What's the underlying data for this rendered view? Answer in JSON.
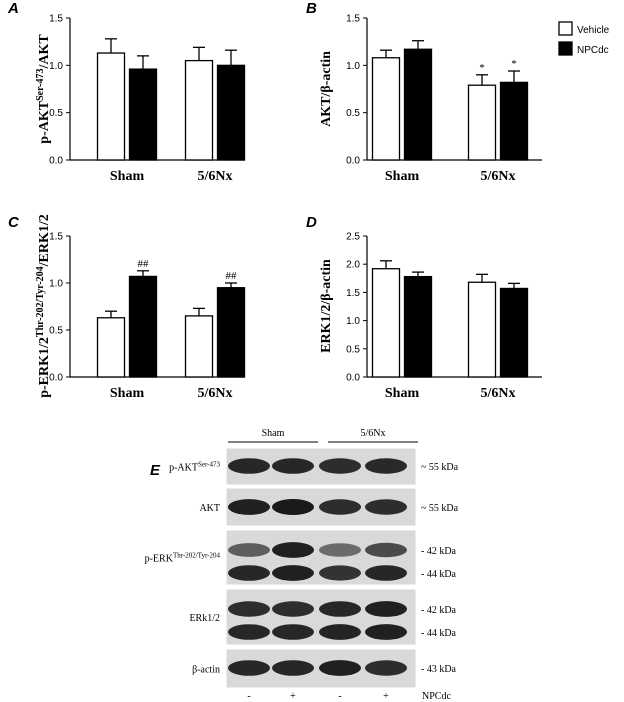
{
  "chart_data": [
    {
      "type": "bar",
      "panel": "A",
      "ylabel": {
        "main": "p-AKT",
        "sup": "Ser-473",
        "tail": "/AKT"
      },
      "ylim": [
        0,
        1.5
      ],
      "yticks": [
        "0.0",
        "0.5",
        "1.0",
        "1.5"
      ],
      "categories": [
        "Sham",
        "5/6Nx"
      ],
      "series": [
        {
          "name": "Vehicle",
          "values": [
            1.13,
            1.05
          ],
          "errors": [
            0.15,
            0.14
          ]
        },
        {
          "name": "NPCdc",
          "values": [
            0.96,
            1.0
          ],
          "errors": [
            0.14,
            0.16
          ]
        }
      ],
      "annotations": []
    },
    {
      "type": "bar",
      "panel": "B",
      "ylabel": {
        "main": "AKT/β-actin",
        "sup": "",
        "tail": ""
      },
      "ylim": [
        0,
        1.5
      ],
      "yticks": [
        "0.0",
        "0.5",
        "1.0",
        "1.5"
      ],
      "categories": [
        "Sham",
        "5/6Nx"
      ],
      "series": [
        {
          "name": "Vehicle",
          "values": [
            1.08,
            0.79
          ],
          "errors": [
            0.08,
            0.11
          ]
        },
        {
          "name": "NPCdc",
          "values": [
            1.17,
            0.82
          ],
          "errors": [
            0.09,
            0.12
          ]
        }
      ],
      "annotations": [
        {
          "category": 1,
          "series": 0,
          "text": "*"
        },
        {
          "category": 1,
          "series": 1,
          "text": "*"
        }
      ]
    },
    {
      "type": "bar",
      "panel": "C",
      "ylabel": {
        "main": "p-ERK1/2",
        "sup": "Thr-202/Tyr-204",
        "tail": "/ERK1/2"
      },
      "ylim": [
        0,
        1.5
      ],
      "yticks": [
        "0.0",
        "0.5",
        "1.0",
        "1.5"
      ],
      "categories": [
        "Sham",
        "5/6Nx"
      ],
      "series": [
        {
          "name": "Vehicle",
          "values": [
            0.63,
            0.65
          ],
          "errors": [
            0.07,
            0.08
          ]
        },
        {
          "name": "NPCdc",
          "values": [
            1.07,
            0.95
          ],
          "errors": [
            0.06,
            0.05
          ]
        }
      ],
      "annotations": [
        {
          "category": 0,
          "series": 1,
          "text": "##"
        },
        {
          "category": 1,
          "series": 1,
          "text": "##"
        }
      ]
    },
    {
      "type": "bar",
      "panel": "D",
      "ylabel": {
        "main": "ERK1/2/β-actin",
        "sup": "",
        "tail": ""
      },
      "ylim": [
        0,
        2.5
      ],
      "yticks": [
        "0.0",
        "0.5",
        "1.0",
        "1.5",
        "2.0",
        "2.5"
      ],
      "categories": [
        "Sham",
        "5/6Nx"
      ],
      "series": [
        {
          "name": "Vehicle",
          "values": [
            1.92,
            1.68
          ],
          "errors": [
            0.14,
            0.14
          ]
        },
        {
          "name": "NPCdc",
          "values": [
            1.78,
            1.57
          ],
          "errors": [
            0.08,
            0.09
          ]
        }
      ],
      "annotations": []
    }
  ],
  "legend": {
    "items": [
      {
        "name": "Vehicle",
        "fill": "#ffffff"
      },
      {
        "name": "NPCdc",
        "fill": "#000000"
      }
    ],
    "placement": "top-right"
  },
  "blot": {
    "panel": "E",
    "groups": [
      "Sham",
      "5/6Nx"
    ],
    "lanes": [
      "-",
      "+",
      "-",
      "+"
    ],
    "treatment_label": "NPCdc",
    "rows": [
      {
        "label": "p-AKT",
        "sup": "Ser-473",
        "markers": [
          "~ 55 kDa"
        ]
      },
      {
        "label": "AKT",
        "sup": "",
        "markers": [
          "~ 55 kDa"
        ]
      },
      {
        "label": "p-ERK",
        "sup": "Thr-202/Tyr-204",
        "markers": [
          "- 42 kDa",
          "- 44 kDa"
        ]
      },
      {
        "label": "ERk1/2",
        "sup": "",
        "markers": [
          "- 42 kDa",
          "- 44 kDa"
        ]
      },
      {
        "label": "β-actin",
        "sup": "",
        "markers": [
          "- 43 kDa"
        ]
      }
    ]
  },
  "colors": {
    "vehicle": "#ffffff",
    "npcdc": "#000000",
    "blot_background": "#d9d9d9",
    "band": "#1a1a1a"
  }
}
